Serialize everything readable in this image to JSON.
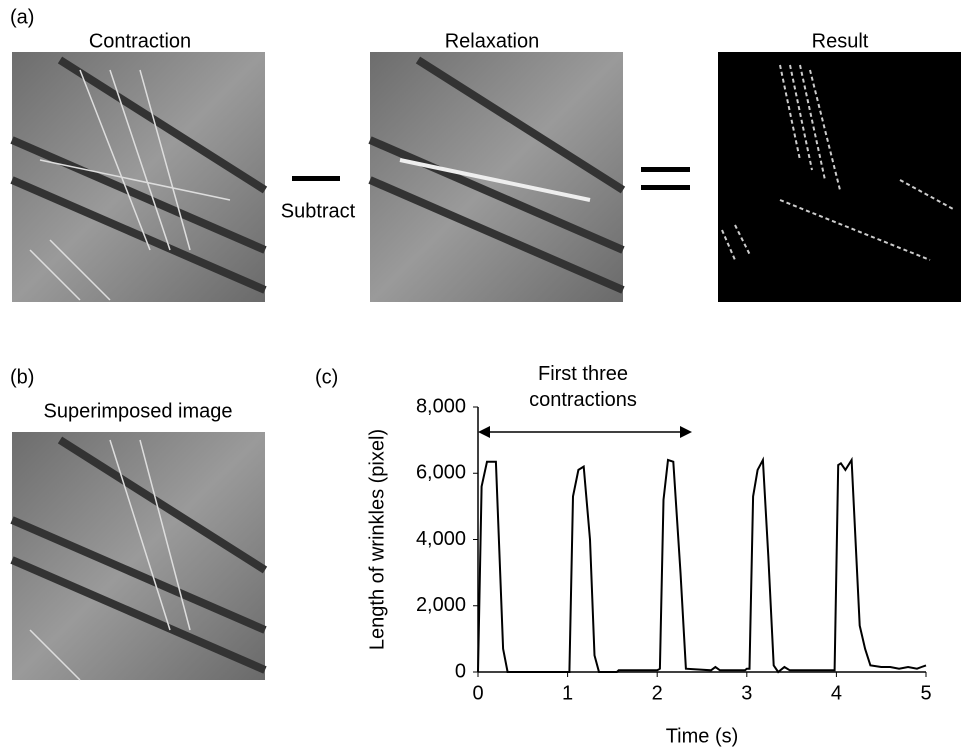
{
  "panels": {
    "a_label": "(a)",
    "contraction": "Contraction",
    "relaxation": "Relaxation",
    "result": "Result",
    "subtract": "Subtract",
    "b_label": "(b)",
    "superimposed": "Superimposed image",
    "c_label": "(c)"
  },
  "chart_data": {
    "type": "line",
    "annotation": "First three contractions",
    "x_label": "Time (s)",
    "y_label": "Length of wrinkles (pixel)",
    "color": "#000000",
    "x": [
      0,
      0.04,
      0.1,
      0.2,
      0.28,
      0.33,
      1.0,
      1.02,
      1.06,
      1.12,
      1.18,
      1.25,
      1.3,
      1.35,
      1.55,
      1.57,
      2.0,
      2.03,
      2.07,
      2.12,
      2.18,
      2.26,
      2.32,
      2.6,
      2.65,
      2.7,
      2.98,
      3.0,
      3.03,
      3.07,
      3.12,
      3.18,
      3.24,
      3.3,
      3.35,
      3.42,
      3.48,
      3.98,
      4.02,
      4.05,
      4.1,
      4.17,
      4.26,
      4.32,
      4.38,
      4.5,
      4.6,
      4.7,
      4.8,
      4.9,
      4.95,
      5.0
    ],
    "values": [
      0,
      5600,
      6350,
      6350,
      700,
      0,
      0,
      0,
      5300,
      6100,
      6200,
      4000,
      500,
      0,
      0,
      50,
      50,
      100,
      5200,
      6400,
      6350,
      3000,
      100,
      50,
      150,
      50,
      50,
      100,
      100,
      5300,
      6100,
      6400,
      3500,
      200,
      0,
      150,
      50,
      50,
      6250,
      6300,
      6100,
      6400,
      1400,
      700,
      200,
      150,
      150,
      100,
      150,
      100,
      150,
      200
    ],
    "xlim": [
      0,
      5
    ],
    "xticks": [
      0,
      1,
      2,
      3,
      4,
      5
    ],
    "ylim": [
      0,
      8000
    ],
    "yticks": [
      0,
      {
        "value": 2000,
        "label": "2,000"
      },
      {
        "value": 4000,
        "label": "4,000"
      },
      {
        "value": 6000,
        "label": "6,000"
      },
      {
        "value": 8000,
        "label": "8,000"
      }
    ]
  }
}
